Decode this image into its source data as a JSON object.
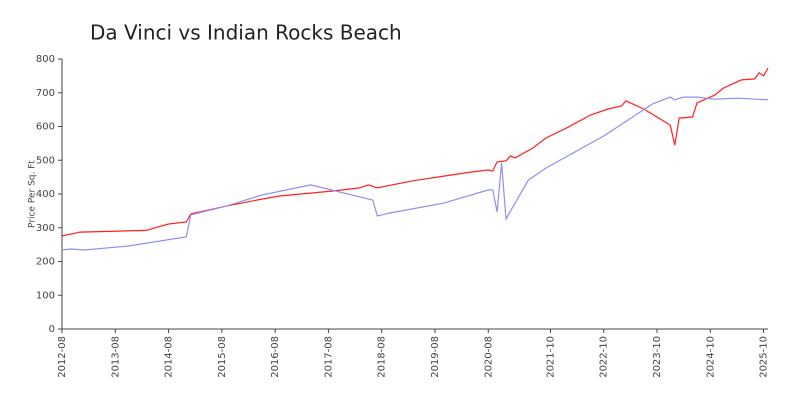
{
  "chart_data": {
    "type": "line",
    "title": "Da Vinci vs Indian Rocks Beach",
    "y_label": "Price Per Sq. Ft",
    "xlim": [
      "2012-08",
      "2025-11"
    ],
    "xticks": [
      "2012-08",
      "2013-08",
      "2014-08",
      "2015-08",
      "2016-08",
      "2017-08",
      "2018-08",
      "2019-08",
      "2020-08",
      "2021-10",
      "2022-10",
      "2023-10",
      "2024-10",
      "2025-10"
    ],
    "ylim": [
      0,
      800
    ],
    "yticks": [
      0,
      100,
      200,
      300,
      400,
      500,
      600,
      700,
      800
    ],
    "grid": false,
    "series": [
      {
        "color": "#ff2020",
        "x": [
          "2012-08",
          "2012-11",
          "2012-12",
          "2014-03",
          "2014-04",
          "2014-08",
          "2014-12",
          "2015-01",
          "2015-09",
          "2016-05",
          "2016-09",
          "2017-09",
          "2018-03",
          "2018-05",
          "2018-07",
          "2019-03",
          "2019-10",
          "2020-04",
          "2020-08",
          "2020-09",
          "2020-10",
          "2020-12",
          "2021-01",
          "2021-02",
          "2021-06",
          "2021-09",
          "2022-02",
          "2022-07",
          "2022-11",
          "2023-02",
          "2023-03",
          "2023-07",
          "2023-10",
          "2024-01",
          "2024-02",
          "2024-03",
          "2024-06",
          "2024-07",
          "2024-11",
          "2025-01",
          "2025-05",
          "2025-08",
          "2025-09",
          "2025-10",
          "2025-11"
        ],
        "values": [
          276,
          284,
          287,
          292,
          296,
          311,
          317,
          341,
          364,
          385,
          394,
          409,
          418,
          427,
          418,
          439,
          453,
          465,
          471,
          468,
          495,
          498,
          513,
          507,
          536,
          566,
          598,
          634,
          652,
          661,
          676,
          652,
          628,
          604,
          545,
          625,
          628,
          670,
          693,
          714,
          738,
          741,
          759,
          750,
          773
        ]
      },
      {
        "color": "#8f8ff0",
        "x": [
          "2012-08",
          "2012-10",
          "2013-01",
          "2013-11",
          "2014-12",
          "2015-01",
          "2015-09",
          "2016-05",
          "2017-04",
          "2018-06",
          "2018-07",
          "2018-10",
          "2019-10",
          "2020-08",
          "2020-09",
          "2020-10",
          "2020-11",
          "2020-12",
          "2021-05",
          "2021-09",
          "2022-10",
          "2023-09",
          "2024-01",
          "2024-02",
          "2024-04",
          "2024-07",
          "2024-11",
          "2025-04",
          "2025-11"
        ],
        "values": [
          234,
          237,
          234,
          246,
          273,
          338,
          364,
          397,
          427,
          382,
          335,
          344,
          373,
          412,
          412,
          347,
          492,
          326,
          441,
          477,
          572,
          667,
          687,
          679,
          687,
          687,
          681,
          684,
          679
        ]
      }
    ]
  }
}
